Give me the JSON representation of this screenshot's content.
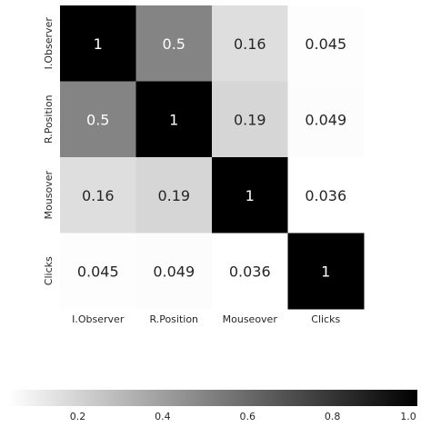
{
  "chart_data": {
    "type": "heatmap",
    "title": "",
    "rows": [
      "I.Observer",
      "R.Position",
      "Mousover",
      "Clicks"
    ],
    "columns": [
      "I.Observer",
      "R.Position",
      "Mouseover",
      "Clicks"
    ],
    "values": [
      [
        1,
        0.5,
        0.16,
        0.045
      ],
      [
        0.5,
        1,
        0.19,
        0.049
      ],
      [
        0.16,
        0.19,
        1,
        0.036
      ],
      [
        0.045,
        0.049,
        0.036,
        1
      ]
    ],
    "cell_labels": [
      [
        "1",
        "0.5",
        "0.16",
        "0.045"
      ],
      [
        "0.5",
        "1",
        "0.19",
        "0.049"
      ],
      [
        "0.16",
        "0.19",
        "1",
        "0.036"
      ],
      [
        "0.045",
        "0.049",
        "0.036",
        "1"
      ]
    ],
    "colormap": "Greys",
    "color_range": [
      0,
      1
    ],
    "colorbar": {
      "orientation": "horizontal",
      "placement": "bottom",
      "ticks": [
        0.2,
        0.4,
        0.6,
        0.8,
        1.0
      ],
      "tick_labels": [
        "0.2",
        "0.4",
        "0.6",
        "0.8",
        "1.0"
      ],
      "range": [
        0.036,
        1.0
      ]
    }
  }
}
